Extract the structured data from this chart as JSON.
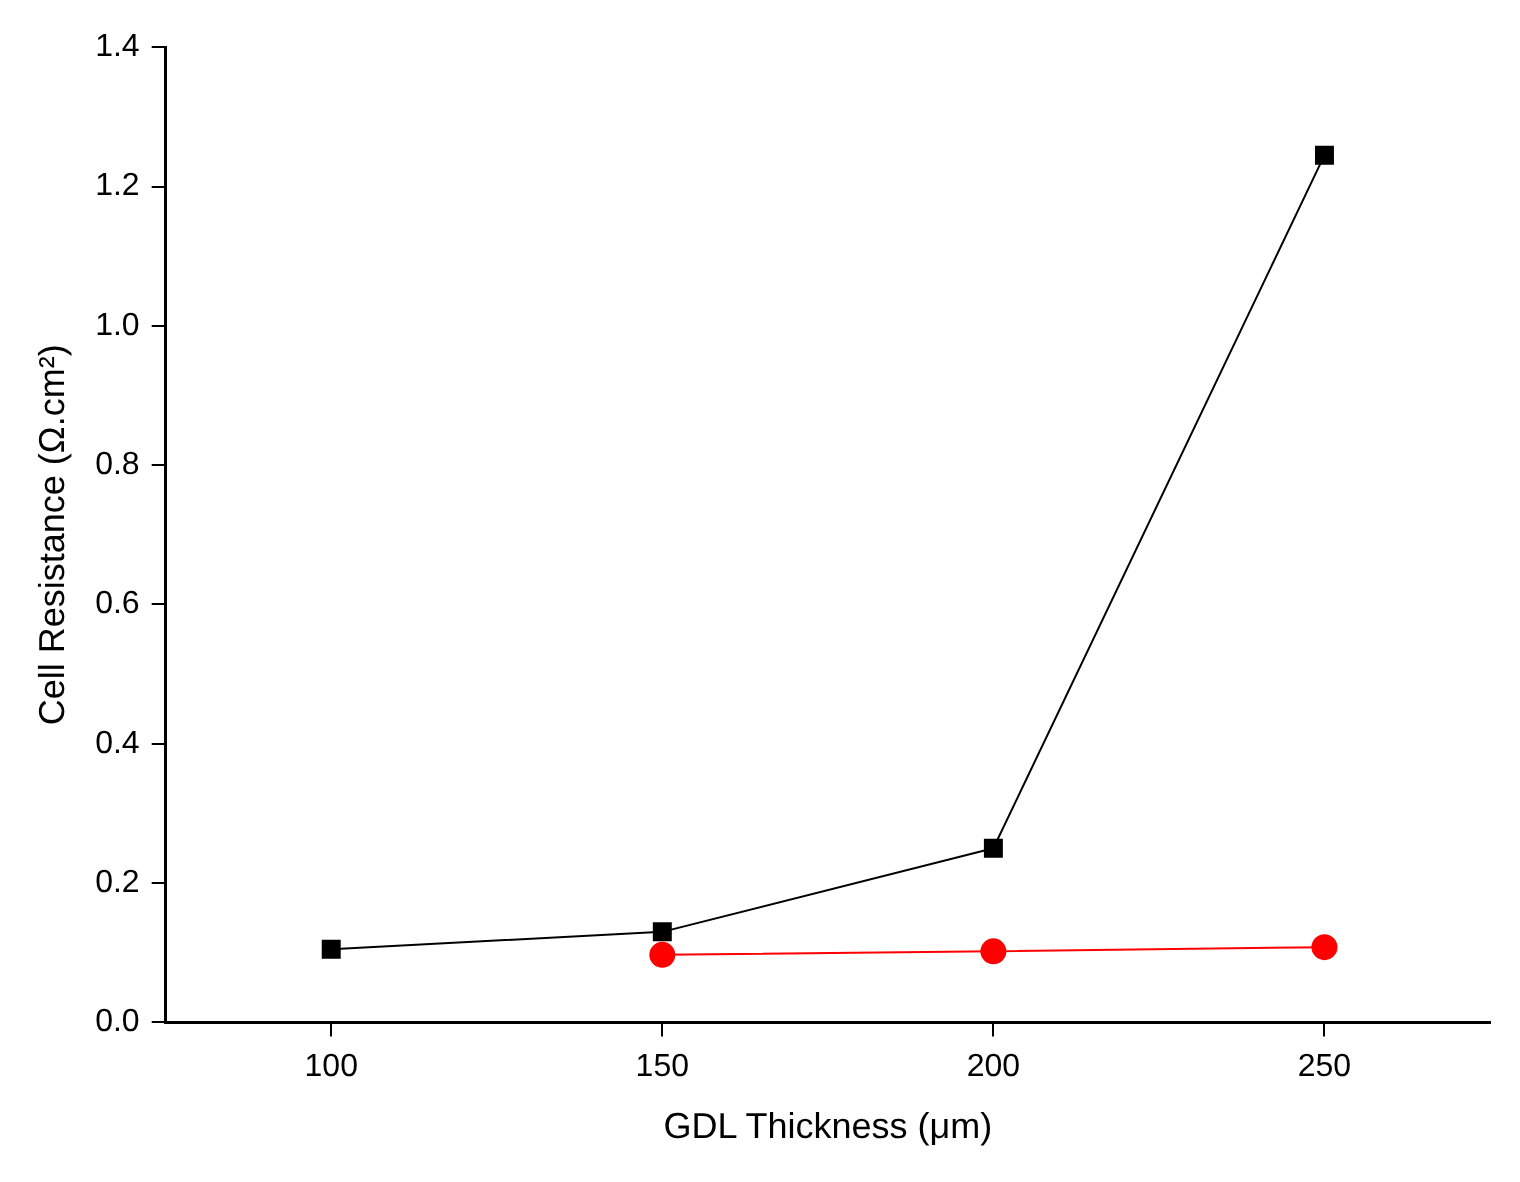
{
  "chart_data": {
    "type": "line",
    "xlabel": "GDL Thickness (μm)",
    "ylabel": "Cell Resistance (Ω.cm²)",
    "xlim": [
      75,
      275
    ],
    "xticks": [
      100,
      150,
      200,
      250
    ],
    "ylim": [
      0,
      1.4
    ],
    "yticks": [
      {
        "value": 0,
        "label": "0.0"
      },
      0.2,
      0.4,
      0.6,
      0.8,
      {
        "value": 1,
        "label": "1.0"
      },
      1.2,
      1.4
    ],
    "grid": false,
    "line_style": "solid",
    "series": [
      {
        "color": "#000000",
        "marker": "square",
        "x": [
          100,
          150,
          200,
          250
        ],
        "values": [
          0.105,
          0.13,
          0.25,
          1.245
        ]
      },
      {
        "color": "#ff0000",
        "marker": "circle",
        "x": [
          150,
          200,
          250
        ],
        "values": [
          0.097,
          0.102,
          0.108
        ]
      }
    ]
  }
}
